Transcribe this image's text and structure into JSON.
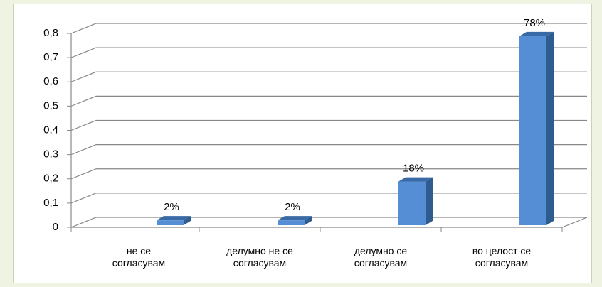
{
  "chart_data": {
    "type": "bar3d",
    "categories": [
      "не се\nсогласувам",
      "делумно не  се\nсогласувам",
      "делумно се\nсогласувам",
      "во целост се\nсогласувам"
    ],
    "values": [
      0.02,
      0.02,
      0.18,
      0.78
    ],
    "value_labels": [
      "2%",
      "2%",
      "18%",
      "78%"
    ],
    "color": "#558ed5",
    "ylim": [
      0,
      0.8
    ],
    "yticks": [
      0,
      {
        "value": 0.1,
        "label": "0,1"
      },
      {
        "value": 0.2,
        "label": "0,2"
      },
      {
        "value": 0.3,
        "label": "0,3"
      },
      {
        "value": 0.4,
        "label": "0,4"
      },
      {
        "value": 0.5,
        "label": "0,5"
      },
      {
        "value": 0.6,
        "label": "0,6"
      },
      {
        "value": 0.7,
        "label": "0,7"
      },
      {
        "value": 0.8,
        "label": "0,8"
      }
    ],
    "grid": true
  }
}
